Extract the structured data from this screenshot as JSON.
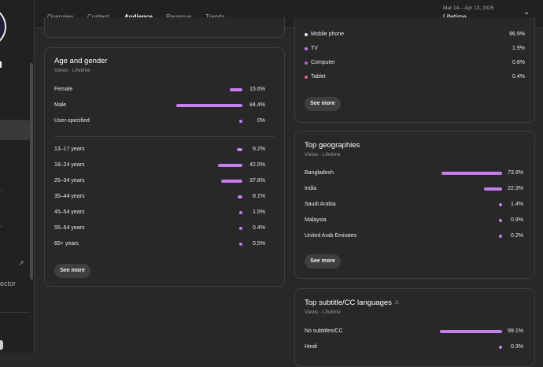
{
  "tabs": [
    "Overview",
    "Content",
    "Audience",
    "Revenue",
    "Trends"
  ],
  "date_range": "Mar 14 – Apr 13, 2025",
  "date_label": "Lifetime",
  "sidebar": {
    "partial_text": "ector"
  },
  "age_gender": {
    "title": "Age and gender",
    "subtitle": "Views · Lifetime",
    "gender": [
      {
        "label": "Female",
        "value": "15.6%",
        "pct": 15.6
      },
      {
        "label": "Male",
        "value": "84.4%",
        "pct": 84.4
      },
      {
        "label": "User-specified",
        "value": "0%",
        "pct": 0
      }
    ],
    "age": [
      {
        "label": "13–17 years",
        "value": "9.2%",
        "pct": 9.2
      },
      {
        "label": "18–24 years",
        "value": "42.5%",
        "pct": 42.5
      },
      {
        "label": "25–34 years",
        "value": "37.8%",
        "pct": 37.8
      },
      {
        "label": "35–44 years",
        "value": "8.1%",
        "pct": 8.1
      },
      {
        "label": "45–54 years",
        "value": "1.5%",
        "pct": 1.5
      },
      {
        "label": "55–64 years",
        "value": "0.4%",
        "pct": 0.4
      },
      {
        "label": "65+ years",
        "value": "0.5%",
        "pct": 0.5
      }
    ],
    "see_more": "See more"
  },
  "devices": {
    "items": [
      {
        "label": "Mobile phone",
        "value": "96.9%",
        "color": "#f1f1f1"
      },
      {
        "label": "TV",
        "value": "1.9%",
        "color": "#c77dea"
      },
      {
        "label": "Computer",
        "value": "0.8%",
        "color": "#9b6fd8"
      },
      {
        "label": "Tablet",
        "value": "0.4%",
        "color": "#e0607e"
      }
    ],
    "see_more": "See more"
  },
  "geographies": {
    "title": "Top geographies",
    "subtitle": "Views · Lifetime",
    "items": [
      {
        "label": "Bangladesh",
        "value": "73.9%",
        "pct": 73.9
      },
      {
        "label": "India",
        "value": "22.3%",
        "pct": 22.3
      },
      {
        "label": "Saudi Arabia",
        "value": "1.4%",
        "pct": 1.4
      },
      {
        "label": "Malaysia",
        "value": "0.9%",
        "pct": 0.9
      },
      {
        "label": "United Arab Emirates",
        "value": "0.2%",
        "pct": 0.2
      }
    ],
    "see_more": "See more"
  },
  "subtitles": {
    "title": "Top subtitle/CC languages",
    "subtitle": "Views · Lifetime",
    "items": [
      {
        "label": "No subtitles/CC",
        "value": "99.1%",
        "pct": 99.1
      },
      {
        "label": "Hindi",
        "value": "0.3%",
        "pct": 0.3
      }
    ]
  }
}
